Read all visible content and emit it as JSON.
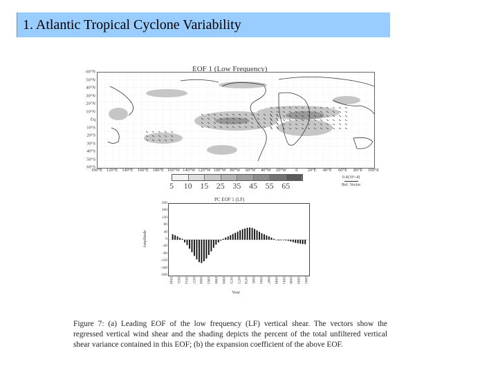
{
  "slide": {
    "title": "1. Atlantic Tropical Cyclone Variability"
  },
  "figure_a": {
    "title": "EOF 1 (Low Frequency)",
    "lat_labels": [
      "60°N",
      "50°N",
      "40°N",
      "30°N",
      "20°N",
      "10°N",
      "Eq",
      "10°S",
      "20°S",
      "30°S",
      "40°S",
      "50°S",
      "60°S"
    ],
    "lon_labels": [
      "100°E",
      "120°E",
      "140°E",
      "160°E",
      "180°E",
      "160°W",
      "140°W",
      "120°W",
      "100°W",
      "80°W",
      "60°W",
      "40°W",
      "20°W",
      "0",
      "20°E",
      "40°E",
      "60°E",
      "80°E",
      "100°E"
    ],
    "colorbar_labels": [
      "5",
      "10",
      "15",
      "25",
      "35",
      "45",
      "55",
      "65"
    ],
    "colorbar_colors": [
      "#f2f2f2",
      "#dddddd",
      "#c8c8c8",
      "#b4b4b4",
      "#a0a0a0",
      "#8c8c8c",
      "#747474",
      "#5c5c5c"
    ],
    "reference_vector": {
      "value": "0.4(10^-4)",
      "label": "Ref. Vector"
    }
  },
  "figure_b": {
    "title": "PC EOF 1 (LF)",
    "ylabel": "Amplitude",
    "xlabel": "Year",
    "y_tick_labels": [
      "200",
      "160",
      "120",
      "80",
      "40",
      "0",
      "-40",
      "-80",
      "-120",
      "-160",
      "-200"
    ],
    "x_tick_labels": [
      "1948",
      "1951",
      "1954",
      "1957",
      "1960",
      "1963",
      "1966",
      "1969",
      "1972",
      "1975",
      "1978",
      "1981",
      "1984",
      "1987",
      "1990",
      "1993",
      "1996",
      "1999",
      "2002"
    ]
  },
  "chart_data": {
    "type": "bar",
    "title": "PC EOF 1 (LF)",
    "xlabel": "Year",
    "ylabel": "Amplitude",
    "ylim": [
      -200,
      200
    ],
    "x": [
      1948,
      1949,
      1950,
      1951,
      1952,
      1953,
      1954,
      1955,
      1956,
      1957,
      1958,
      1959,
      1960,
      1961,
      1962,
      1963,
      1964,
      1965,
      1966,
      1967,
      1968,
      1969,
      1970,
      1971,
      1972,
      1973,
      1974,
      1975,
      1976,
      1977,
      1978,
      1979,
      1980,
      1981,
      1982,
      1983,
      1984,
      1985,
      1986,
      1987,
      1988,
      1989,
      1990,
      1991,
      1992,
      1993,
      1994,
      1995,
      1996,
      1997,
      1998,
      1999,
      2000,
      2001,
      2002,
      2003
    ],
    "values": [
      30,
      25,
      18,
      10,
      5,
      -15,
      -30,
      -50,
      -70,
      -90,
      -110,
      -125,
      -130,
      -120,
      -105,
      -85,
      -65,
      -45,
      -28,
      -15,
      -5,
      5,
      12,
      18,
      25,
      32,
      38,
      45,
      52,
      58,
      62,
      66,
      68,
      66,
      60,
      52,
      44,
      36,
      30,
      24,
      18,
      12,
      5,
      -2,
      -4,
      -3,
      -2,
      -4,
      -6,
      -10,
      -14,
      -18,
      -20,
      -22,
      -24,
      -25
    ],
    "grid": false
  },
  "caption": {
    "text": "Figure 7: (a) Leading EOF of the low frequency (LF) vertical shear. The vectors show the regressed vertical wind shear and the shading depicts the percent of the total unfiltered vertical shear variance contained in this EOF; (b) the expansion coefficient of the above EOF."
  }
}
